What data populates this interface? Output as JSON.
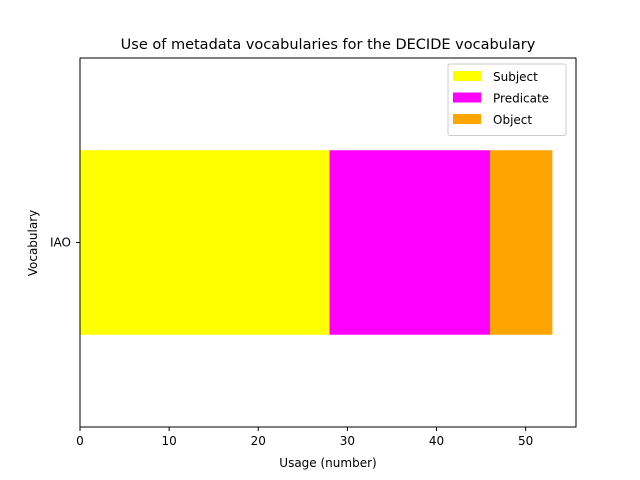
{
  "chart_data": {
    "type": "bar",
    "orientation": "horizontal",
    "stacked": true,
    "title": "Use of metadata vocabularies for the DECIDE vocabulary",
    "xlabel": "Usage (number)",
    "ylabel": "Vocabulary",
    "categories": [
      "IAO"
    ],
    "series": [
      {
        "name": "Subject",
        "values": [
          28
        ],
        "color": "#ffff00"
      },
      {
        "name": "Predicate",
        "values": [
          18
        ],
        "color": "#ff00ff"
      },
      {
        "name": "Object",
        "values": [
          7
        ],
        "color": "#ffa500"
      }
    ],
    "xlim": [
      0,
      55.65
    ],
    "xticks": [
      0,
      10,
      20,
      30,
      40,
      50
    ],
    "grid": false,
    "legend_position": "upper right"
  }
}
